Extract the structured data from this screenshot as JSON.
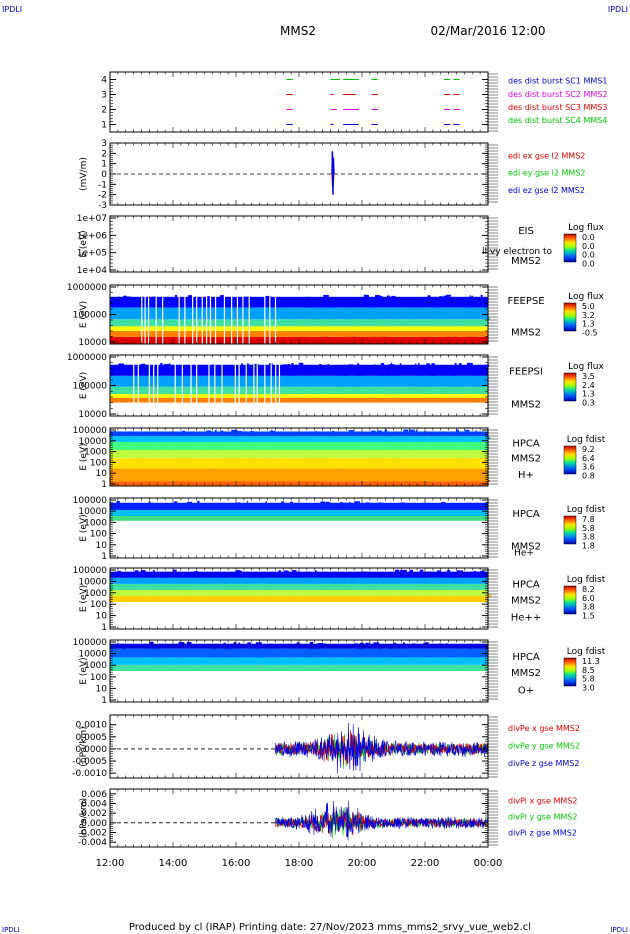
{
  "header": {
    "left_brand": "IPDLI",
    "right_brand": "IPDLI",
    "title": "MMS2",
    "date": "02/Mar/2016 12:00"
  },
  "footer": {
    "text": "Produced by cl (IRAP)   Printing date: 27/Nov/2023   mms_mms2_srvy_vue_web2.cl",
    "left_brand": "IPDLI",
    "right_brand": "IPDLI"
  },
  "colors": {
    "blue": "#0000e0",
    "green": "#00c800",
    "red": "#e00000",
    "magenta": "#e000e0"
  },
  "chart_data": [
    {
      "type": "line",
      "id": "burst",
      "ylabel": "",
      "ylim": [
        0.5,
        4.5
      ],
      "yticks": [
        "1",
        "2",
        "3",
        "4"
      ],
      "legend": [
        {
          "text": "des dist burst SC1 MMS1",
          "color": "#0000e0"
        },
        {
          "text": "des dist burst SC2 MMS2",
          "color": "#e000e0"
        },
        {
          "text": "des dist burst SC3 MMS3",
          "color": "#e00000"
        },
        {
          "text": "des dist burst SC4 MMS4",
          "color": "#00c800"
        }
      ],
      "series": [
        {
          "level": 4,
          "color": "#00c800",
          "intervals": [
            [
              17.6,
              17.8
            ],
            [
              19.0,
              19.3
            ],
            [
              19.4,
              19.9
            ],
            [
              20.3,
              20.5
            ],
            [
              22.6,
              22.8
            ],
            [
              22.9,
              23.1
            ]
          ]
        },
        {
          "level": 3,
          "color": "#e00000",
          "intervals": [
            [
              17.6,
              17.8
            ],
            [
              19.0,
              19.1
            ],
            [
              19.4,
              19.8
            ],
            [
              20.3,
              20.5
            ],
            [
              22.6,
              22.8
            ],
            [
              22.9,
              23.1
            ],
            [
              23.9,
              24.0
            ]
          ]
        },
        {
          "level": 2,
          "color": "#e000e0",
          "intervals": [
            [
              17.6,
              17.8
            ],
            [
              19.0,
              19.2
            ],
            [
              19.4,
              19.9
            ],
            [
              20.3,
              20.5
            ],
            [
              22.6,
              22.8
            ],
            [
              22.9,
              23.1
            ],
            [
              23.9,
              24.0
            ]
          ]
        },
        {
          "level": 1,
          "color": "#0000e0",
          "intervals": [
            [
              17.6,
              17.8
            ],
            [
              19.0,
              19.1
            ],
            [
              19.4,
              19.9
            ],
            [
              20.3,
              20.5
            ],
            [
              22.6,
              22.8
            ],
            [
              22.9,
              23.1
            ],
            [
              23.9,
              24.0
            ]
          ]
        }
      ]
    },
    {
      "type": "line",
      "id": "edi",
      "ylabel": "(mV/m)",
      "ylim": [
        -3,
        3
      ],
      "yticks": [
        "-3",
        "-2",
        "-1",
        "0",
        "1",
        "2",
        "3"
      ],
      "legend": [
        {
          "text": "edi ex gse l2 MMS2",
          "color": "#e00000"
        },
        {
          "text": "edi ey gse l2 MMS2",
          "color": "#00c800"
        },
        {
          "text": "edi ez gse l2 MMS2",
          "color": "#0000e0"
        }
      ],
      "series": [
        {
          "color": "#e00000",
          "x": [
            19.05,
            19.07,
            19.08,
            19.09,
            19.1
          ],
          "y": [
            0,
            -1.2,
            1.5,
            -0.8,
            0
          ]
        },
        {
          "color": "#00c800",
          "x": [
            19.05,
            19.07,
            19.08,
            19.09,
            19.1
          ],
          "y": [
            0,
            0.9,
            -1.0,
            1.2,
            0
          ]
        },
        {
          "color": "#0000e0",
          "x": [
            19.05,
            19.06,
            19.08,
            19.09,
            19.11
          ],
          "y": [
            0,
            2.2,
            -2.0,
            1.6,
            0
          ]
        }
      ]
    },
    {
      "type": "heatmap",
      "id": "eis",
      "ylabel": "E (eV)",
      "yticks": [
        "1e+04",
        "1e+05",
        "1e+06",
        "1e+07"
      ],
      "instrument": [
        "EIS",
        "",
        "MMS2"
      ],
      "overlay_text": "ll   vy electron to",
      "colorbar": {
        "label": "Log flux",
        "ticks": [
          "0.0",
          "0.0",
          "0.0",
          "0.0"
        ]
      },
      "bands": []
    },
    {
      "type": "heatmap",
      "id": "feepse",
      "ylabel": "E (eV)",
      "yticks": [
        "10000",
        "100000",
        "1000000"
      ],
      "instrument": [
        "FEEPSE",
        "",
        "MMS2"
      ],
      "colorbar": {
        "label": "Log flux",
        "ticks": [
          "5.0",
          "3.2",
          "1.3",
          "-0.5"
        ]
      },
      "bands": [
        {
          "from": 0.0,
          "to": 0.12,
          "color": "#e00000"
        },
        {
          "from": 0.12,
          "to": 0.22,
          "color": "#ff8000"
        },
        {
          "from": 0.22,
          "to": 0.3,
          "color": "#ffff00"
        },
        {
          "from": 0.3,
          "to": 0.42,
          "color": "#40e0a0"
        },
        {
          "from": 0.42,
          "to": 0.62,
          "color": "#00a0ff"
        },
        {
          "from": 0.62,
          "to": 0.8,
          "color": "#0000ff"
        }
      ]
    },
    {
      "type": "heatmap",
      "id": "feepsi",
      "ylabel": "E (eV)",
      "yticks": [
        "10000",
        "100000",
        "1000000"
      ],
      "instrument": [
        "FEEPSI",
        "",
        "MMS2"
      ],
      "colorbar": {
        "label": "Log flux",
        "ticks": [
          "3.5",
          "2.4",
          "1.3",
          "0.3"
        ]
      },
      "bands": [
        {
          "from": 0.22,
          "to": 0.3,
          "color": "#ff8000"
        },
        {
          "from": 0.3,
          "to": 0.36,
          "color": "#ffff00"
        },
        {
          "from": 0.36,
          "to": 0.48,
          "color": "#40e0a0"
        },
        {
          "from": 0.48,
          "to": 0.66,
          "color": "#00a0ff"
        },
        {
          "from": 0.66,
          "to": 0.84,
          "color": "#0000ff"
        }
      ]
    },
    {
      "type": "heatmap",
      "id": "hpca-h",
      "ylabel": "E (eV)",
      "yticks": [
        "1",
        "10",
        "100",
        "1000",
        "10000",
        "100000"
      ],
      "instrument": [
        "HPCA",
        "MMS2",
        "H+"
      ],
      "colorbar": {
        "label": "Log fdist",
        "ticks": [
          "9.2",
          "6.4",
          "3.6",
          "0.8"
        ]
      },
      "bands": [
        {
          "from": 0.0,
          "to": 0.08,
          "color": "#ff6000"
        },
        {
          "from": 0.08,
          "to": 0.3,
          "color": "#ffa000"
        },
        {
          "from": 0.3,
          "to": 0.48,
          "color": "#ffe000"
        },
        {
          "from": 0.48,
          "to": 0.62,
          "color": "#c0ff40"
        },
        {
          "from": 0.62,
          "to": 0.76,
          "color": "#40ff80"
        },
        {
          "from": 0.76,
          "to": 0.86,
          "color": "#00c0ff"
        },
        {
          "from": 0.86,
          "to": 0.94,
          "color": "#0040ff"
        }
      ]
    },
    {
      "type": "heatmap",
      "id": "hpca-he",
      "ylabel": "E (eV)",
      "yticks": [
        "1",
        "10",
        "100",
        "1000",
        "10000",
        "100000"
      ],
      "instrument": [
        "HPCA",
        "",
        "MMS2"
      ],
      "species": "He+",
      "colorbar": {
        "label": "Log fdist",
        "ticks": [
          "7.8",
          "5.8",
          "3.8",
          "1.8"
        ]
      },
      "bands": [
        {
          "from": 0.62,
          "to": 0.7,
          "color": "#40e080"
        },
        {
          "from": 0.7,
          "to": 0.8,
          "color": "#00c0ff"
        },
        {
          "from": 0.8,
          "to": 0.92,
          "color": "#0020ff"
        }
      ]
    },
    {
      "type": "heatmap",
      "id": "hpca-hepp",
      "ylabel": "E (eV)",
      "yticks": [
        "1",
        "10",
        "100",
        "1000",
        "10000",
        "100000"
      ],
      "instrument": [
        "HPCA",
        "MMS2",
        "He++"
      ],
      "colorbar": {
        "label": "Log fdist",
        "ticks": [
          "8.2",
          "6.0",
          "3.8",
          "1.5"
        ]
      },
      "bands": [
        {
          "from": 0.44,
          "to": 0.54,
          "color": "#ffd000"
        },
        {
          "from": 0.54,
          "to": 0.64,
          "color": "#c0ff40"
        },
        {
          "from": 0.64,
          "to": 0.74,
          "color": "#40e0a0"
        },
        {
          "from": 0.74,
          "to": 0.84,
          "color": "#00a0ff"
        },
        {
          "from": 0.84,
          "to": 0.94,
          "color": "#0000ff"
        }
      ]
    },
    {
      "type": "heatmap",
      "id": "hpca-o",
      "ylabel": "E (eV)",
      "yticks": [
        "1",
        "10",
        "100",
        "1000",
        "10000",
        "100000"
      ],
      "instrument": [
        "HPCA",
        "MMS2",
        "O+"
      ],
      "colorbar": {
        "label": "Log fdist",
        "ticks": [
          "11.3",
          "8.5",
          "5.8",
          "3.0"
        ]
      },
      "bands": [
        {
          "from": 0.5,
          "to": 0.6,
          "color": "#40e0a0"
        },
        {
          "from": 0.6,
          "to": 0.72,
          "color": "#00c0ff"
        },
        {
          "from": 0.72,
          "to": 0.86,
          "color": "#0060ff"
        },
        {
          "from": 0.86,
          "to": 0.94,
          "color": "#0000e0"
        }
      ]
    },
    {
      "type": "line",
      "id": "divpe",
      "ylabel": "(nPa/km)",
      "ylim": [
        -0.0012,
        0.0014
      ],
      "yticks": [
        "-0.0010",
        "-0.0005",
        "0.0000",
        "0.0005",
        "0.0010"
      ],
      "legend": [
        {
          "text": "divPe x gse MMS2",
          "color": "#e00000"
        },
        {
          "text": "divPe y gse MMS2",
          "color": "#00c800"
        },
        {
          "text": "divPe z gse MMS2",
          "color": "#0000e0"
        }
      ],
      "noise": {
        "start": 17.25,
        "end": 24.0,
        "amplitude": 0.0004,
        "burst_at": 19.5,
        "burst_amplitude": 0.0011
      }
    },
    {
      "type": "line",
      "id": "divpi",
      "ylabel": "(nPa/km)",
      "ylim": [
        -0.005,
        0.007
      ],
      "yticks": [
        "-0.004",
        "-0.002",
        "0.000",
        "0.002",
        "0.004",
        "0.006"
      ],
      "legend": [
        {
          "text": "divPi x gse MMS2",
          "color": "#e00000"
        },
        {
          "text": "divPi y gse MMS2",
          "color": "#00c800"
        },
        {
          "text": "divPi z gse MMS2",
          "color": "#0000e0"
        }
      ],
      "noise": {
        "start": 17.25,
        "end": 24.0,
        "amplitude": 0.0015,
        "burst_at": 19.2,
        "burst_amplitude": 0.005
      }
    }
  ],
  "xaxis": {
    "xlim": [
      12,
      24
    ],
    "ticks": [
      {
        "value": 12,
        "label": "12:00"
      },
      {
        "value": 14,
        "label": "14:00"
      },
      {
        "value": 16,
        "label": "16:00"
      },
      {
        "value": 18,
        "label": "18:00"
      },
      {
        "value": 20,
        "label": "20:00"
      },
      {
        "value": 22,
        "label": "22:00"
      },
      {
        "value": 24,
        "label": "00:00"
      }
    ]
  }
}
